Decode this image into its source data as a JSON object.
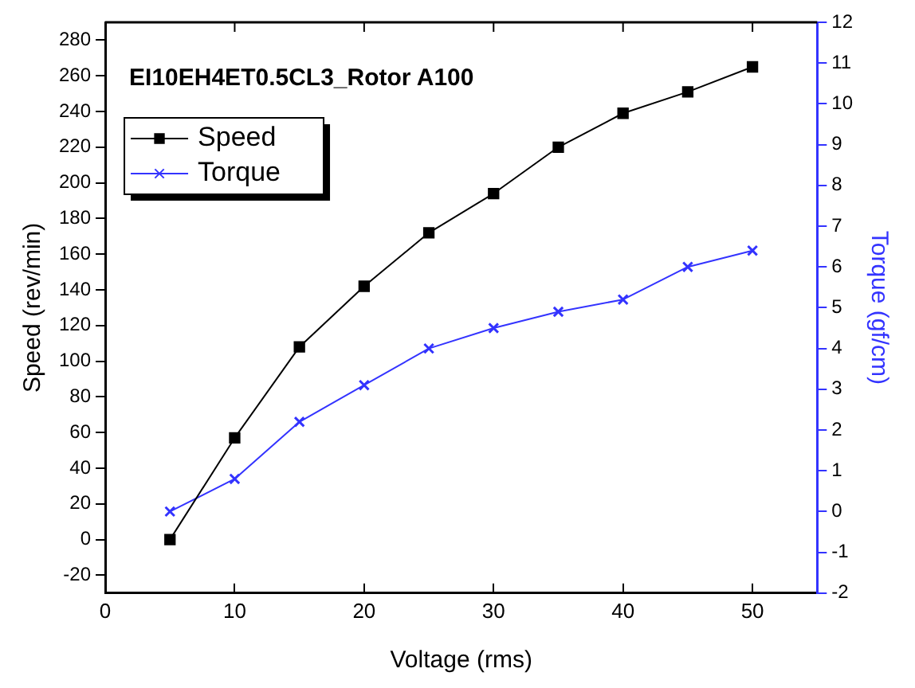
{
  "chart_data": {
    "type": "line",
    "title": "EI10EH4ET0.5CL3_Rotor A100",
    "xlabel": "Voltage (rms)",
    "ylabel": "Speed (rev/min)",
    "y2label": "Torque (gf/cm)",
    "x": [
      5,
      10,
      15,
      20,
      25,
      30,
      35,
      40,
      45,
      50
    ],
    "xlim": [
      0,
      55
    ],
    "xticks": [
      0,
      10,
      20,
      30,
      40,
      50
    ],
    "ylim": [
      -30,
      290
    ],
    "yticks": [
      -20,
      0,
      20,
      40,
      60,
      80,
      100,
      120,
      140,
      160,
      180,
      200,
      220,
      240,
      260,
      280
    ],
    "y2lim": [
      -2,
      12
    ],
    "y2ticks": [
      -2,
      -1,
      0,
      1,
      2,
      3,
      4,
      5,
      6,
      7,
      8,
      9,
      10,
      11,
      12
    ],
    "legend": "top left",
    "grid": false,
    "series": [
      {
        "name": "Speed",
        "color": "#000000",
        "marker": "square",
        "values": [
          0,
          57,
          108,
          142,
          172,
          194,
          220,
          239,
          251,
          265
        ]
      },
      {
        "name": "Torque",
        "color": "#3333ff",
        "marker": "cross",
        "axis": "y2",
        "values": [
          0,
          0.8,
          2.2,
          3.1,
          4.0,
          4.5,
          4.9,
          5.2,
          6.0,
          6.4
        ]
      }
    ]
  }
}
